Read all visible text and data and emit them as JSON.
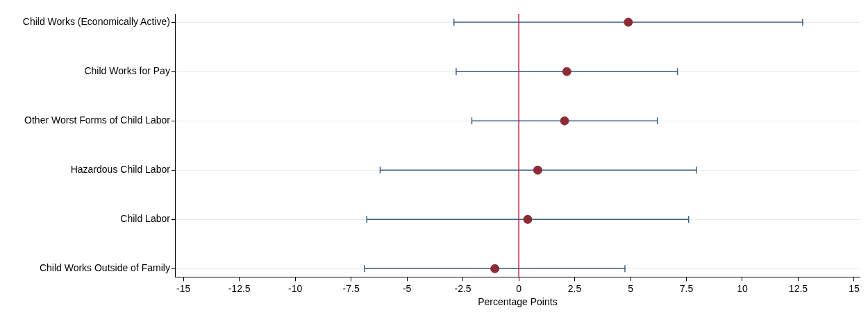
{
  "chart_data": {
    "type": "scatter",
    "orientation": "horizontal",
    "categories": [
      "Child Works (Economically Active)",
      "Child Works for Pay",
      "Other Worst Forms of Child Labor",
      "Hazardous Child Labor",
      "Child Labor",
      "Child Works Outside of Family"
    ],
    "values": [
      4.9,
      2.15,
      2.05,
      0.85,
      0.4,
      -1.07
    ],
    "errors": [
      [
        -2.9,
        12.7
      ],
      [
        -2.8,
        7.1
      ],
      [
        -2.1,
        6.2
      ],
      [
        -6.2,
        7.95
      ],
      [
        -6.8,
        7.6
      ],
      [
        -6.9,
        4.75
      ]
    ],
    "color": "#8b2b36",
    "xlabel": "Percentage Points",
    "xlim": [
      -15.35,
      15.25
    ],
    "xticks": [
      -15,
      -12.5,
      -10,
      -7.5,
      -5,
      -2.5,
      0,
      2.5,
      5,
      7.5,
      10,
      12.5,
      15
    ],
    "ref_lines": [
      {
        "axis": "x",
        "value": 0,
        "color": "#d0204a"
      }
    ],
    "grid": "y",
    "marker": "circle",
    "legend": false
  }
}
